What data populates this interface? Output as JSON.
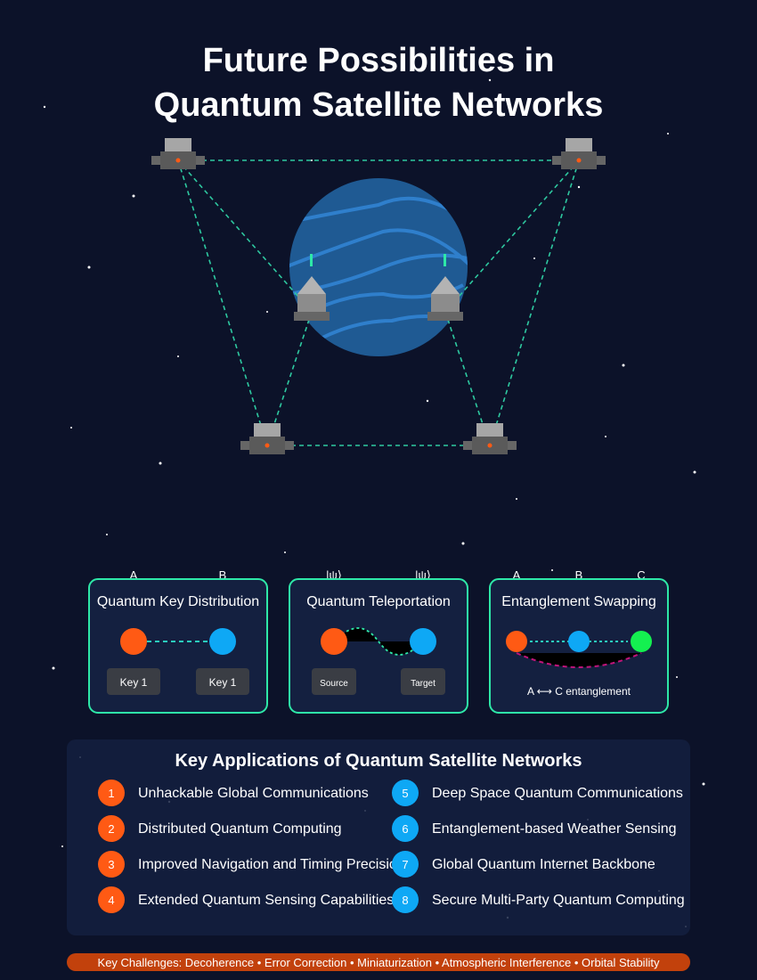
{
  "title": {
    "line1": "Future Possibilities in",
    "line2": "Quantum Satellite Networks"
  },
  "colors": {
    "background": "#0c1229",
    "planet": "#1f5a93",
    "link": "#2ec9a0",
    "orange": "#ff5a14",
    "blue": "#0ea8f5",
    "green": "#14f050",
    "magenta": "#c0147a",
    "panel_border": "#2ee8a8",
    "challenges_bar": "#c2410c"
  },
  "network": {
    "satellite_count": 4,
    "ground_station_count": 2
  },
  "panels": {
    "qkd": {
      "title": "Quantum Key Distribution",
      "label_a": "A",
      "label_b": "B",
      "key_left": "Key 1",
      "key_right": "Key 1"
    },
    "teleport": {
      "title": "Quantum Teleportation",
      "label_left": "|ψ⟩",
      "label_right": "|ψ⟩",
      "source": "Source",
      "target": "Target"
    },
    "swap": {
      "title": "Entanglement Swapping",
      "label_a": "A",
      "label_b": "B",
      "label_c": "C",
      "caption": "A ⟷ C entanglement"
    }
  },
  "applications": {
    "heading": "Key Applications of Quantum Satellite Networks",
    "left": [
      {
        "num": "1",
        "text": "Unhackable Global Communications"
      },
      {
        "num": "2",
        "text": "Distributed Quantum Computing"
      },
      {
        "num": "3",
        "text": "Improved Navigation and Timing Precision"
      },
      {
        "num": "4",
        "text": "Extended Quantum Sensing Capabilities"
      }
    ],
    "right": [
      {
        "num": "5",
        "text": "Deep Space Quantum Communications"
      },
      {
        "num": "6",
        "text": "Entanglement-based Weather Sensing"
      },
      {
        "num": "7",
        "text": "Global Quantum Internet Backbone"
      },
      {
        "num": "8",
        "text": "Secure Multi-Party Quantum Computing"
      }
    ]
  },
  "challenges": "Key Challenges: Decoherence • Error Correction • Miniaturization • Atmospheric Interference • Orbital Stability"
}
